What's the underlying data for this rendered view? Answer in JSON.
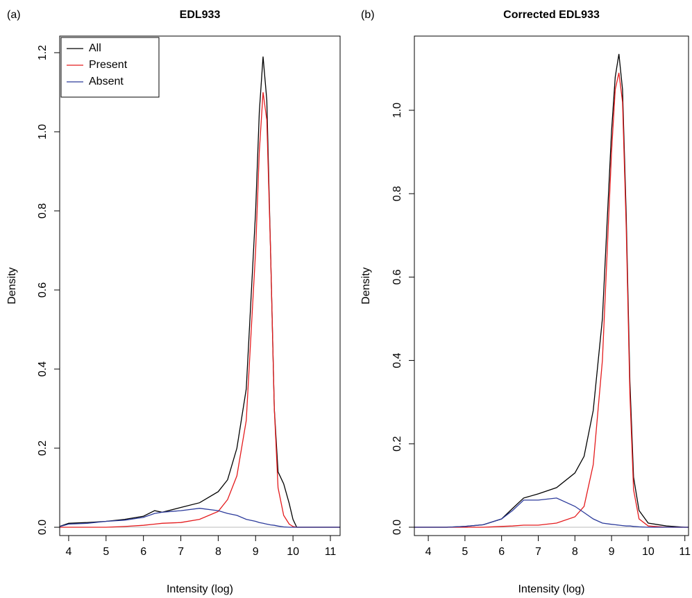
{
  "chart_data": [
    {
      "type": "line",
      "panel_label": "(a)",
      "title": "EDL933",
      "x_label": "Intensity (log)",
      "y_label": "Density",
      "x": [
        3.7,
        4,
        4.5,
        5,
        5.5,
        6,
        6.3,
        6.5,
        7,
        7.5,
        8,
        8.25,
        8.5,
        8.75,
        9,
        9.1,
        9.2,
        9.3,
        9.4,
        9.5,
        9.6,
        9.75,
        9.9,
        10,
        10.1,
        10.5,
        11,
        11.3
      ],
      "series": [
        {
          "name": "All",
          "color": "#000000",
          "values": [
            0,
            0.01,
            0.012,
            0.015,
            0.02,
            0.028,
            0.042,
            0.038,
            0.05,
            0.062,
            0.09,
            0.12,
            0.2,
            0.35,
            0.8,
            1.05,
            1.19,
            1.08,
            0.7,
            0.3,
            0.14,
            0.11,
            0.06,
            0.02,
            0,
            0,
            0,
            0
          ]
        },
        {
          "name": "Present",
          "color": "#e41a1c",
          "values": [
            0,
            0,
            0,
            0,
            0.002,
            0.005,
            0.008,
            0.01,
            0.012,
            0.02,
            0.04,
            0.07,
            0.13,
            0.27,
            0.7,
            0.95,
            1.1,
            1.03,
            0.7,
            0.3,
            0.1,
            0.03,
            0.008,
            0.002,
            0,
            0,
            0,
            0
          ]
        },
        {
          "name": "Absent",
          "color": "#2b3a9b",
          "values": [
            0,
            0.008,
            0.01,
            0.015,
            0.018,
            0.025,
            0.035,
            0.038,
            0.042,
            0.048,
            0.042,
            0.035,
            0.03,
            0.02,
            0.015,
            0.012,
            0.01,
            0.008,
            0.006,
            0.005,
            0.003,
            0.001,
            0,
            0,
            0,
            0,
            0,
            0
          ]
        }
      ],
      "xlim": [
        3.76,
        11.26
      ],
      "ylim": [
        -0.021,
        1.242
      ],
      "xticks": [
        4,
        5,
        6,
        7,
        8,
        9,
        10,
        11
      ],
      "yticks": [
        {
          "value": 0,
          "label": "0.0"
        },
        0.2,
        0.4,
        0.6,
        0.8,
        {
          "value": 1,
          "label": "1.0"
        },
        1.2
      ],
      "zero_line": true,
      "legend": "top-left"
    },
    {
      "type": "line",
      "panel_label": "(b)",
      "title": "Corrected EDL933",
      "x_label": "Intensity (log)",
      "y_label": "Density",
      "x": [
        3.6,
        4,
        4.5,
        5,
        5.5,
        6,
        6.3,
        6.6,
        7,
        7.5,
        8,
        8.25,
        8.5,
        8.75,
        9,
        9.1,
        9.2,
        9.3,
        9.4,
        9.5,
        9.6,
        9.75,
        10,
        10.5,
        11,
        11.1
      ],
      "series": [
        {
          "color": "#000000",
          "values": [
            0,
            0,
            0,
            0.002,
            0.006,
            0.02,
            0.045,
            0.07,
            0.08,
            0.095,
            0.13,
            0.17,
            0.28,
            0.5,
            0.95,
            1.08,
            1.135,
            1.05,
            0.75,
            0.35,
            0.12,
            0.04,
            0.01,
            0.003,
            0,
            0
          ]
        },
        {
          "color": "#e41a1c",
          "values": [
            0,
            0,
            0,
            0,
            0,
            0.002,
            0.003,
            0.005,
            0.005,
            0.01,
            0.025,
            0.05,
            0.15,
            0.4,
            0.9,
            1.05,
            1.09,
            1.02,
            0.72,
            0.32,
            0.09,
            0.02,
            0.003,
            0,
            0,
            0
          ]
        },
        {
          "color": "#2b3a9b",
          "values": [
            0,
            0,
            0,
            0.002,
            0.006,
            0.02,
            0.04,
            0.065,
            0.065,
            0.07,
            0.05,
            0.035,
            0.02,
            0.01,
            0.007,
            0.006,
            0.005,
            0.004,
            0.003,
            0.003,
            0.002,
            0.001,
            0,
            0,
            0,
            0
          ]
        }
      ],
      "xlim": [
        3.62,
        11.1
      ],
      "ylim": [
        -0.02,
        1.178
      ],
      "xticks": [
        4,
        5,
        6,
        7,
        8,
        9,
        10,
        11
      ],
      "yticks": [
        {
          "value": 0,
          "label": "0.0"
        },
        0.2,
        0.4,
        0.6,
        0.8,
        {
          "value": 1,
          "label": "1.0"
        }
      ],
      "zero_line": true
    }
  ]
}
